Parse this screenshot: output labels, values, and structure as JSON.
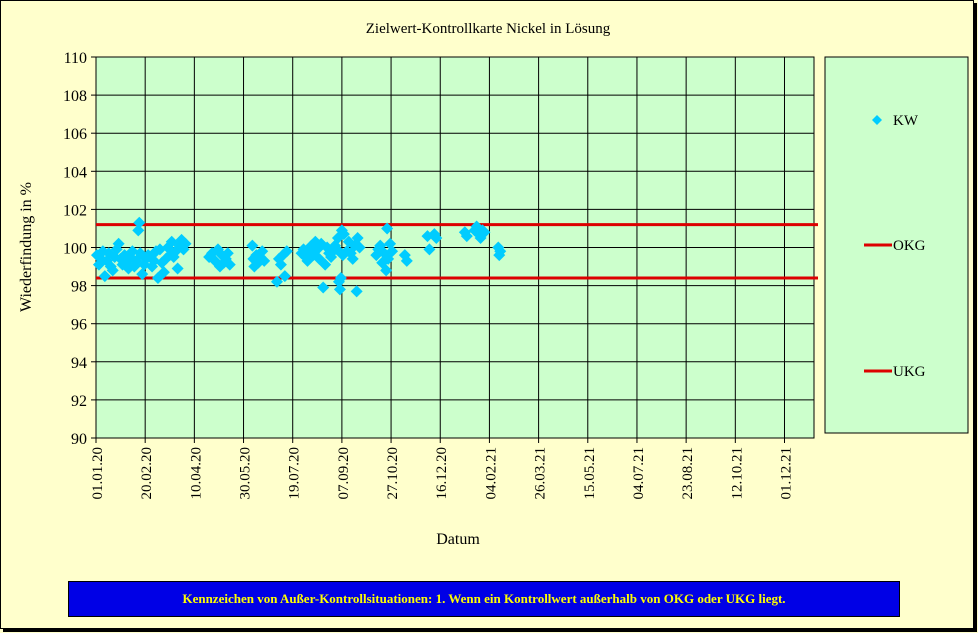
{
  "chart_data": {
    "type": "scatter",
    "title": "Zielwert-Kontrollkarte  Nickel in Lösung",
    "xlabel": "Datum",
    "ylabel": "Wiederfindung  in %",
    "xlim": [
      "2020-01-01",
      "2021-12-31"
    ],
    "ylim": [
      90,
      110
    ],
    "yticks": [
      90,
      92,
      94,
      96,
      98,
      100,
      102,
      104,
      106,
      108,
      110
    ],
    "xticks": [
      "2020-01-01",
      "2020-02-20",
      "2020-04-10",
      "2020-05-30",
      "2020-07-19",
      "2020-09-07",
      "2020-10-27",
      "2020-12-16",
      "2021-02-04",
      "2021-03-26",
      "2021-05-15",
      "2021-07-04",
      "2021-08-23",
      "2021-10-12",
      "2021-12-01"
    ],
    "xtick_labels": [
      "01.01.20",
      "20.02.20",
      "10.04.20",
      "30.05.20",
      "19.07.20",
      "07.09.20",
      "27.10.20",
      "16.12.20",
      "04.02.21",
      "26.03.21",
      "15.05.21",
      "04.07.21",
      "23.08.21",
      "12.10.21",
      "01.12.21"
    ],
    "grid": true,
    "legend_position": "right",
    "colors": {
      "kw": "#00ccff",
      "limits": "#dd0000",
      "plot_bg": "#ccffcc",
      "page_bg": "#ffffcc"
    },
    "series": [
      {
        "name": "KW",
        "kind": "points",
        "points": [
          [
            "2020-01-02",
            99.6
          ],
          [
            "2020-01-04",
            99.1
          ],
          [
            "2020-01-06",
            99.4
          ],
          [
            "2020-01-08",
            99.8
          ],
          [
            "2020-01-10",
            98.5
          ],
          [
            "2020-01-12",
            99.3
          ],
          [
            "2020-01-14",
            99.7
          ],
          [
            "2020-01-16",
            99.0
          ],
          [
            "2020-01-18",
            98.8
          ],
          [
            "2020-01-20",
            99.5
          ],
          [
            "2020-01-22",
            99.9
          ],
          [
            "2020-01-24",
            100.2
          ],
          [
            "2020-01-26",
            99.4
          ],
          [
            "2020-01-28",
            99.1
          ],
          [
            "2020-01-30",
            99.6
          ],
          [
            "2020-02-01",
            99.2
          ],
          [
            "2020-02-03",
            98.9
          ],
          [
            "2020-02-05",
            99.5
          ],
          [
            "2020-02-07",
            99.8
          ],
          [
            "2020-02-09",
            99.0
          ],
          [
            "2020-02-11",
            99.3
          ],
          [
            "2020-02-13",
            100.9
          ],
          [
            "2020-02-14",
            101.3
          ],
          [
            "2020-02-15",
            99.7
          ],
          [
            "2020-02-17",
            98.6
          ],
          [
            "2020-02-19",
            99.1
          ],
          [
            "2020-02-21",
            99.4
          ],
          [
            "2020-02-23",
            99.6
          ],
          [
            "2020-02-25",
            99.5
          ],
          [
            "2020-02-27",
            99.0
          ],
          [
            "2020-02-29",
            99.3
          ],
          [
            "2020-03-02",
            99.8
          ],
          [
            "2020-03-04",
            98.4
          ],
          [
            "2020-03-06",
            99.9
          ],
          [
            "2020-03-08",
            99.2
          ],
          [
            "2020-03-10",
            98.7
          ],
          [
            "2020-03-12",
            99.4
          ],
          [
            "2020-03-14",
            100.0
          ],
          [
            "2020-03-16",
            99.6
          ],
          [
            "2020-03-18",
            100.3
          ],
          [
            "2020-03-20",
            99.5
          ],
          [
            "2020-03-22",
            99.8
          ],
          [
            "2020-03-24",
            98.9
          ],
          [
            "2020-03-26",
            100.1
          ],
          [
            "2020-03-28",
            100.4
          ],
          [
            "2020-03-30",
            99.9
          ],
          [
            "2020-04-01",
            100.2
          ],
          [
            "2020-04-25",
            99.5
          ],
          [
            "2020-04-28",
            99.7
          ],
          [
            "2020-05-01",
            99.3
          ],
          [
            "2020-05-04",
            99.9
          ],
          [
            "2020-05-06",
            99.0
          ],
          [
            "2020-05-08",
            99.6
          ],
          [
            "2020-05-10",
            99.2
          ],
          [
            "2020-05-12",
            99.4
          ],
          [
            "2020-05-14",
            99.7
          ],
          [
            "2020-05-16",
            99.1
          ],
          [
            "2020-06-08",
            100.1
          ],
          [
            "2020-06-09",
            99.4
          ],
          [
            "2020-06-10",
            99.0
          ],
          [
            "2020-06-12",
            99.6
          ],
          [
            "2020-06-14",
            99.2
          ],
          [
            "2020-06-16",
            99.5
          ],
          [
            "2020-06-18",
            99.8
          ],
          [
            "2020-06-20",
            99.3
          ],
          [
            "2020-07-03",
            98.2
          ],
          [
            "2020-07-05",
            99.4
          ],
          [
            "2020-07-07",
            99.1
          ],
          [
            "2020-07-09",
            99.6
          ],
          [
            "2020-07-11",
            98.5
          ],
          [
            "2020-07-13",
            99.8
          ],
          [
            "2020-07-28",
            99.7
          ],
          [
            "2020-07-30",
            99.9
          ],
          [
            "2020-08-01",
            99.5
          ],
          [
            "2020-08-03",
            99.3
          ],
          [
            "2020-08-05",
            99.8
          ],
          [
            "2020-08-07",
            100.1
          ],
          [
            "2020-08-09",
            99.6
          ],
          [
            "2020-08-11",
            100.3
          ],
          [
            "2020-08-13",
            99.9
          ],
          [
            "2020-08-15",
            99.4
          ],
          [
            "2020-08-17",
            100.2
          ],
          [
            "2020-08-19",
            97.9
          ],
          [
            "2020-08-21",
            99.1
          ],
          [
            "2020-08-23",
            100.0
          ],
          [
            "2020-08-25",
            99.7
          ],
          [
            "2020-08-27",
            99.5
          ],
          [
            "2020-08-29",
            99.8
          ],
          [
            "2020-08-31",
            100.1
          ],
          [
            "2020-09-02",
            99.9
          ],
          [
            "2020-09-03",
            100.5
          ],
          [
            "2020-09-04",
            98.2
          ],
          [
            "2020-09-05",
            97.8
          ],
          [
            "2020-09-06",
            98.4
          ],
          [
            "2020-09-07",
            100.9
          ],
          [
            "2020-09-08",
            99.6
          ],
          [
            "2020-09-09",
            100.7
          ],
          [
            "2020-09-12",
            99.8
          ],
          [
            "2020-09-14",
            100.3
          ],
          [
            "2020-09-16",
            99.7
          ],
          [
            "2020-09-18",
            99.4
          ],
          [
            "2020-09-20",
            100.1
          ],
          [
            "2020-09-22",
            97.7
          ],
          [
            "2020-09-23",
            100.5
          ],
          [
            "2020-09-25",
            100.0
          ],
          [
            "2020-10-12",
            99.6
          ],
          [
            "2020-10-14",
            99.9
          ],
          [
            "2020-10-16",
            100.1
          ],
          [
            "2020-10-18",
            99.2
          ],
          [
            "2020-10-20",
            99.7
          ],
          [
            "2020-10-22",
            98.8
          ],
          [
            "2020-10-23",
            101.0
          ],
          [
            "2020-10-24",
            99.4
          ],
          [
            "2020-10-26",
            100.2
          ],
          [
            "2020-10-28",
            99.8
          ],
          [
            "2020-11-10",
            99.6
          ],
          [
            "2020-11-12",
            99.3
          ],
          [
            "2020-12-03",
            100.6
          ],
          [
            "2020-12-05",
            99.9
          ],
          [
            "2020-12-10",
            100.7
          ],
          [
            "2020-12-12",
            100.5
          ],
          [
            "2021-01-10",
            100.8
          ],
          [
            "2021-01-12",
            100.6
          ],
          [
            "2021-01-20",
            100.9
          ],
          [
            "2021-01-22",
            101.1
          ],
          [
            "2021-01-24",
            100.7
          ],
          [
            "2021-01-26",
            100.5
          ],
          [
            "2021-01-28",
            100.9
          ],
          [
            "2021-01-30",
            100.8
          ],
          [
            "2021-02-13",
            100.0
          ],
          [
            "2021-02-14",
            99.6
          ],
          [
            "2021-02-15",
            99.8
          ]
        ]
      },
      {
        "name": "OKG",
        "kind": "hline",
        "y": 101.2
      },
      {
        "name": "UKG",
        "kind": "hline",
        "y": 98.4
      }
    ]
  },
  "footer": {
    "note": "Kennzeichen  von  Außer-Kontrollsituationen:  1. Wenn  ein  Kontrollwert  außerhalb  von OKG oder UKG liegt."
  }
}
